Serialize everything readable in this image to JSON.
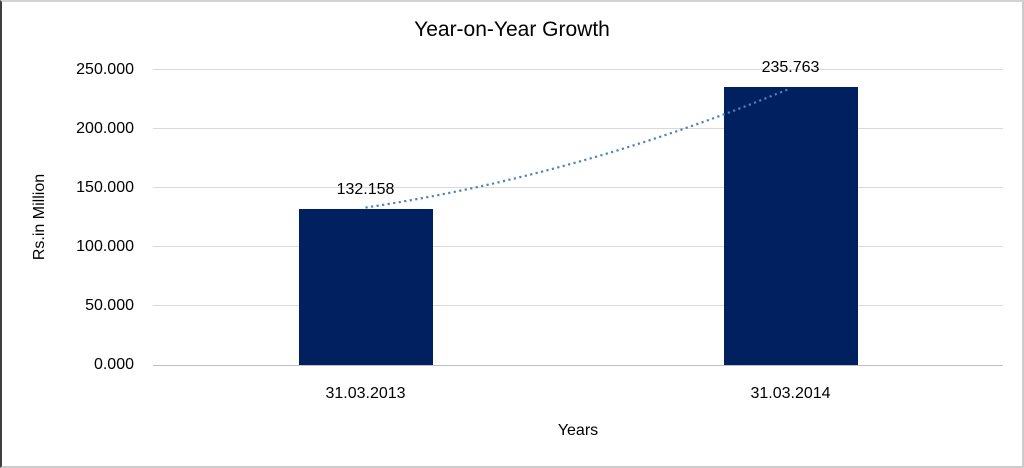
{
  "chart_data": {
    "type": "bar",
    "title": "Year-on-Year Growth",
    "categories": [
      "31.03.2013",
      "31.03.2014"
    ],
    "values": [
      132.158,
      235.763
    ],
    "data_labels": [
      "132.158",
      "235.763"
    ],
    "xlabel": "Years",
    "ylabel": "Rs.in Million",
    "ylim": [
      0,
      250
    ],
    "ytick_step": 50,
    "yticks": [
      "0.000",
      "50.000",
      "100.000",
      "150.000",
      "200.000",
      "250.000"
    ],
    "grid": true,
    "legend": "none",
    "bar_color": "#002060",
    "gridline_color": "#d9d9d9",
    "trendline": {
      "style": "dotted",
      "color": "#4f81bd"
    }
  }
}
